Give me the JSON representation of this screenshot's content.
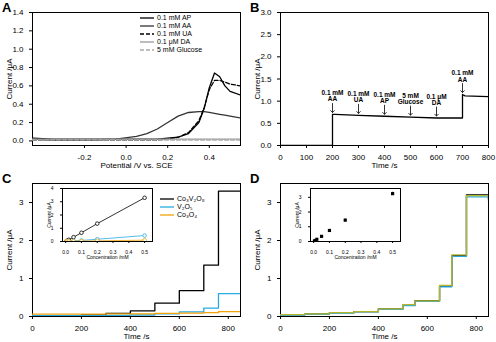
{
  "chart_data": [
    {
      "type": "line",
      "title": "A",
      "xlabel": "Potential /V vs. SCE",
      "ylabel": "Current /μA",
      "xlim": [
        -0.45,
        0.55
      ],
      "xticks": [
        -0.2,
        {
          "value": 0,
          "label": "0.0"
        },
        0.2,
        0.4
      ],
      "ylim": [
        -0.05,
        1.4
      ],
      "yticks": [
        {
          "value": 0,
          "label": "0.0"
        },
        0.2,
        0.4,
        0.6,
        0.8,
        {
          "value": 1,
          "label": "1.0"
        },
        1.2,
        1.4
      ],
      "legend": "top-right",
      "x": [
        -0.45,
        -0.35,
        -0.25,
        -0.15,
        -0.05,
        0.05,
        0.1,
        0.15,
        0.2,
        0.25,
        0.3,
        0.35,
        0.375,
        0.4,
        0.425,
        0.45,
        0.475,
        0.5,
        0.55
      ],
      "series": [
        {
          "name": "0.1 mM AP",
          "color": "#000000",
          "line_style": "solid",
          "values": [
            0.03,
            0.02,
            0.02,
            0.02,
            0.02,
            0.02,
            0.02,
            0.02,
            0.03,
            0.04,
            0.08,
            0.2,
            0.35,
            0.58,
            0.74,
            0.7,
            0.6,
            0.54,
            0.5
          ]
        },
        {
          "name": "0.1 mM AA",
          "color": "#333333",
          "line_style": "solid",
          "values": [
            0.02,
            0.01,
            0.01,
            0.01,
            0.02,
            0.05,
            0.08,
            0.13,
            0.2,
            0.27,
            0.31,
            0.32,
            0.32,
            0.31,
            0.3,
            0.29,
            0.28,
            0.27,
            0.25
          ]
        },
        {
          "name": "0.1 mM UA",
          "color": "#000000",
          "line_style": "dashed",
          "values": [
            0.01,
            0.01,
            0.01,
            0.01,
            0.01,
            0.01,
            0.01,
            0.01,
            0.02,
            0.04,
            0.09,
            0.22,
            0.36,
            0.56,
            0.66,
            0.66,
            0.64,
            0.62,
            0.6
          ]
        },
        {
          "name": "0.1 μM DA",
          "color": "#999999",
          "line_style": "solid",
          "values": [
            0.02,
            0.02,
            0.02,
            0.02,
            0.02,
            0.02,
            0.02,
            0.02,
            0.02,
            0.02,
            0.02,
            0.02,
            0.02,
            0.02,
            0.02,
            0.02,
            0.02,
            0.02,
            0.02
          ]
        },
        {
          "name": "5 mM Glucose",
          "color": "#aaaaaa",
          "line_style": "dashed",
          "values": [
            0.01,
            0.01,
            0.01,
            0.01,
            0.01,
            0.01,
            0.01,
            0.01,
            0.01,
            0.01,
            0.01,
            0.01,
            0.01,
            0.01,
            0.01,
            0.01,
            0.01,
            0.01,
            0.01
          ]
        }
      ]
    },
    {
      "type": "line",
      "title": "B",
      "xlabel": "Time /s",
      "ylabel": "Current /μA",
      "xlim": [
        0,
        800
      ],
      "xticks": [
        0,
        100,
        200,
        300,
        400,
        500,
        600,
        700,
        800
      ],
      "ylim": [
        0,
        3.0
      ],
      "yticks": [
        {
          "value": 0,
          "label": "0.0"
        },
        0.5,
        {
          "value": 1,
          "label": "1.0"
        },
        1.5,
        {
          "value": 2,
          "label": "2.0"
        },
        2.5,
        {
          "value": 3,
          "label": "3.0"
        }
      ],
      "x": [
        0,
        200,
        200,
        210,
        300,
        400,
        500,
        600,
        700,
        700,
        710,
        800
      ],
      "series": [
        {
          "color": "#000000",
          "line_style": "solid",
          "values": [
            0,
            0,
            0.7,
            0.7,
            0.68,
            0.66,
            0.64,
            0.62,
            0.62,
            1.15,
            1.12,
            1.1
          ]
        }
      ],
      "annotations": [
        {
          "x": 200,
          "text": "0.1 mM AA"
        },
        {
          "x": 300,
          "text": "0.1 mM UA"
        },
        {
          "x": 400,
          "text": "0.1 mM AP"
        },
        {
          "x": 500,
          "text": "5 mM Glucose"
        },
        {
          "x": 600,
          "text": "0.1 μM DA"
        },
        {
          "x": 700,
          "text": "0.1 mM AA"
        }
      ]
    },
    {
      "type": "step",
      "title": "C",
      "xlabel": "Time /s",
      "ylabel": "Current /μA",
      "xlim": [
        0,
        850
      ],
      "xticks": [
        0,
        200,
        400,
        600,
        800
      ],
      "ylim": [
        0,
        3.5
      ],
      "yticks": [
        0,
        1,
        2,
        3
      ],
      "legend": "top-right",
      "x": [
        0,
        200,
        300,
        400,
        500,
        600,
        700,
        760,
        850
      ],
      "series": [
        {
          "name": "Co₃V₂O₈",
          "color": "#000000",
          "line_style": "solid",
          "values": [
            0.02,
            0.04,
            0.08,
            0.15,
            0.35,
            0.68,
            1.35,
            3.3,
            3.3
          ]
        },
        {
          "name": "V₂O₅",
          "color": "#29abe2",
          "line_style": "solid",
          "values": [
            0.02,
            0.02,
            0.03,
            0.04,
            0.07,
            0.12,
            0.22,
            0.6,
            0.6
          ]
        },
        {
          "name": "Co₃O₄",
          "color": "#f0a30a",
          "line_style": "solid",
          "values": [
            0.06,
            0.06,
            0.07,
            0.07,
            0.08,
            0.09,
            0.1,
            0.13,
            0.13
          ]
        }
      ]
    },
    {
      "type": "line",
      "xlabel": "Concentration /mM",
      "ylabel": "Current /μA",
      "xlim": [
        -0.02,
        0.55
      ],
      "xticks": [
        {
          "value": 0,
          "label": "0.0"
        },
        0.1,
        0.2,
        0.3,
        0.4,
        0.5
      ],
      "ylim": [
        0,
        4
      ],
      "yticks": [
        0,
        1,
        2,
        3,
        4
      ],
      "x": [
        0.005,
        0.01,
        0.02,
        0.05,
        0.1,
        0.2,
        0.5
      ],
      "series": [
        {
          "color": "#000000",
          "marker": "circle",
          "values": [
            0.03,
            0.06,
            0.13,
            0.33,
            0.66,
            1.35,
            3.3
          ]
        },
        {
          "color": "#29abe2",
          "marker": "circle",
          "values": [
            0.01,
            0.01,
            0.02,
            0.04,
            0.08,
            0.17,
            0.45
          ]
        },
        {
          "color": "#f0a30a",
          "marker": "circle",
          "values": [
            0.01,
            0.01,
            0.01,
            0.02,
            0.03,
            0.05,
            0.1
          ]
        }
      ]
    },
    {
      "type": "step",
      "title": "D",
      "xlabel": "Time /s",
      "ylabel": "Current /μA",
      "xlim": [
        0,
        850
      ],
      "xticks": [
        0,
        200,
        400,
        600,
        800
      ],
      "ylim": [
        0,
        3.5
      ],
      "yticks": [
        0,
        1,
        2,
        3
      ],
      "x": [
        0,
        100,
        200,
        300,
        400,
        500,
        550,
        650,
        700,
        760,
        850
      ],
      "series": [
        {
          "color": "#000000",
          "line_style": "solid",
          "values": [
            0.05,
            0.07,
            0.1,
            0.13,
            0.2,
            0.3,
            0.42,
            0.8,
            1.6,
            3.2,
            3.1
          ]
        },
        {
          "color": "#29abe2",
          "line_style": "solid",
          "values": [
            0.04,
            0.06,
            0.09,
            0.12,
            0.19,
            0.29,
            0.4,
            0.78,
            1.58,
            3.15,
            3.05
          ]
        },
        {
          "color": "#b5b52a",
          "line_style": "solid",
          "values": [
            0.05,
            0.07,
            0.1,
            0.13,
            0.2,
            0.31,
            0.41,
            0.82,
            1.62,
            3.18,
            3.08
          ]
        }
      ]
    },
    {
      "type": "scatter",
      "xlabel": "Concentration /mM",
      "ylabel": "Current /μA",
      "xlim": [
        -0.02,
        0.55
      ],
      "xticks": [
        {
          "value": 0,
          "label": "0.0"
        },
        0.1,
        0.2,
        0.3,
        0.4,
        0.5
      ],
      "ylim": [
        0,
        3.6
      ],
      "yticks": [
        0,
        1,
        2,
        3
      ],
      "x": [
        0.005,
        0.01,
        0.02,
        0.05,
        0.1,
        0.2,
        0.5
      ],
      "series": [
        {
          "color": "#000000",
          "marker": "square",
          "values": [
            0.03,
            0.07,
            0.15,
            0.35,
            0.75,
            1.45,
            3.25
          ],
          "errors": [
            0.02,
            0.03,
            0.04,
            0.05,
            0.06,
            0.08,
            0.1
          ]
        }
      ]
    }
  ]
}
